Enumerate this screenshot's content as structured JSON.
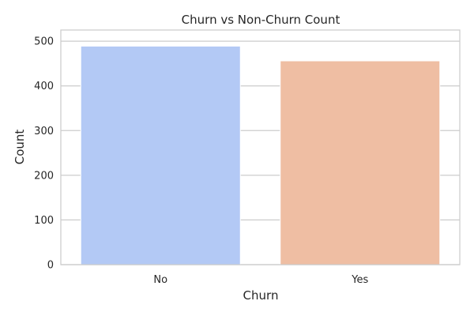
{
  "chart_data": {
    "type": "bar",
    "title": "Churn vs Non-Churn Count",
    "xlabel": "Churn",
    "ylabel": "Count",
    "categories": [
      "No",
      "Yes"
    ],
    "values": [
      489,
      456
    ],
    "colors": [
      "#b3c9f5",
      "#efbea3"
    ],
    "ylim": [
      0,
      525
    ],
    "yticks": [
      "0",
      "100",
      "200",
      "300",
      "400",
      "500"
    ],
    "grid": true,
    "grid_color": "#cccccc",
    "frame_color": "#cccccc"
  }
}
